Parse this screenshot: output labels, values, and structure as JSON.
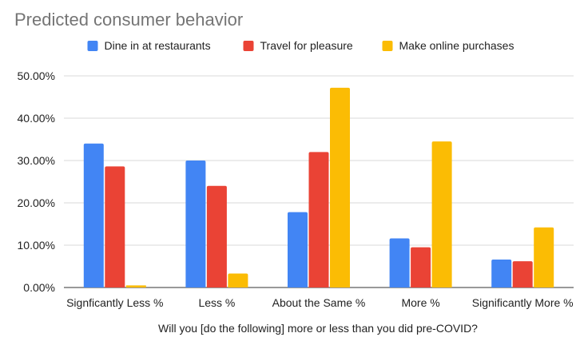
{
  "chart_data": {
    "type": "bar",
    "title": "Predicted consumer behavior",
    "xlabel": "Will you [do the following] more or less than you did pre-COVID?",
    "ylabel": "",
    "ylim": [
      0,
      50
    ],
    "yticks": [
      0,
      10,
      20,
      30,
      40,
      50
    ],
    "ytick_labels": [
      "0.00%",
      "10.00%",
      "20.00%",
      "30.00%",
      "40.00%",
      "50.00%"
    ],
    "categories": [
      "Signficantly Less %",
      "Less %",
      "About the Same %",
      "More %",
      "Significantly More %"
    ],
    "series": [
      {
        "name": "Dine in at restaurants",
        "color": "#4285F4",
        "values": [
          34.0,
          30.0,
          17.8,
          11.6,
          6.6
        ]
      },
      {
        "name": "Travel for pleasure",
        "color": "#EA4335",
        "values": [
          28.6,
          24.0,
          32.0,
          9.5,
          6.2
        ]
      },
      {
        "name": "Make online purchases",
        "color": "#FBBC04",
        "values": [
          0.5,
          3.3,
          47.2,
          34.5,
          14.2
        ]
      }
    ],
    "grid": true,
    "legend_position": "top"
  }
}
